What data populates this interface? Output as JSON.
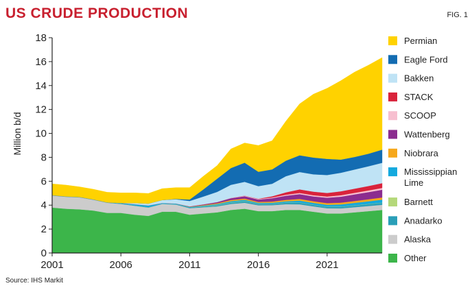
{
  "header": {
    "title": "US CRUDE PRODUCTION",
    "fig_label": "FIG. 1"
  },
  "footer": {
    "source": "Source: IHS Markit"
  },
  "chart_data": {
    "type": "area",
    "stacked": true,
    "title": "US CRUDE PRODUCTION",
    "xlabel": "",
    "ylabel": "Million b/d",
    "xlim": [
      2001,
      2025
    ],
    "ylim": [
      0,
      18
    ],
    "x_ticks": [
      2001,
      2006,
      2011,
      2016,
      2021
    ],
    "y_ticks": [
      0,
      2,
      4,
      6,
      8,
      10,
      12,
      14,
      16,
      18
    ],
    "x_tick_labels": [
      "2001",
      "2006",
      "2011",
      "2016",
      "2021"
    ],
    "y_tick_labels": [
      "0",
      "2",
      "4",
      "6",
      "8",
      "10",
      "12",
      "14",
      "16",
      "18"
    ],
    "legend_position": "right",
    "x": [
      2001,
      2002,
      2003,
      2004,
      2005,
      2006,
      2007,
      2008,
      2009,
      2010,
      2011,
      2012,
      2013,
      2014,
      2015,
      2016,
      2017,
      2018,
      2019,
      2020,
      2021,
      2022,
      2023,
      2024,
      2025
    ],
    "series": [
      {
        "name": "Other",
        "color": "#3cb54a",
        "values": [
          3.8,
          3.7,
          3.65,
          3.55,
          3.35,
          3.35,
          3.2,
          3.1,
          3.45,
          3.45,
          3.2,
          3.3,
          3.4,
          3.6,
          3.7,
          3.5,
          3.5,
          3.6,
          3.6,
          3.45,
          3.3,
          3.3,
          3.4,
          3.5,
          3.6
        ]
      },
      {
        "name": "Alaska",
        "color": "#cccccc",
        "values": [
          1.0,
          1.0,
          1.0,
          0.9,
          0.85,
          0.75,
          0.75,
          0.7,
          0.65,
          0.6,
          0.55,
          0.52,
          0.5,
          0.5,
          0.5,
          0.49,
          0.5,
          0.48,
          0.47,
          0.45,
          0.44,
          0.43,
          0.43,
          0.43,
          0.43
        ]
      },
      {
        "name": "Anadarko",
        "color": "#2a9fb8",
        "values": [
          0.03,
          0.03,
          0.03,
          0.03,
          0.03,
          0.03,
          0.03,
          0.03,
          0.03,
          0.04,
          0.05,
          0.06,
          0.08,
          0.1,
          0.12,
          0.1,
          0.1,
          0.12,
          0.14,
          0.12,
          0.12,
          0.13,
          0.14,
          0.15,
          0.16
        ]
      },
      {
        "name": "Barnett",
        "color": "#b5d87a",
        "values": [
          0,
          0,
          0,
          0,
          0,
          0,
          0,
          0,
          0,
          0,
          0,
          0.02,
          0.03,
          0.03,
          0.03,
          0.02,
          0.02,
          0.02,
          0.02,
          0.02,
          0.02,
          0.02,
          0.02,
          0.02,
          0.02
        ]
      },
      {
        "name": "Mississippian Lime",
        "color": "#14a9de",
        "values": [
          0,
          0,
          0,
          0,
          0,
          0.05,
          0.1,
          0.15,
          0.05,
          0.05,
          0.05,
          0.06,
          0.08,
          0.1,
          0.1,
          0.08,
          0.08,
          0.1,
          0.15,
          0.15,
          0.15,
          0.18,
          0.2,
          0.22,
          0.25
        ]
      },
      {
        "name": "Niobrara",
        "color": "#f6a81c",
        "values": [
          0,
          0,
          0,
          0,
          0,
          0,
          0,
          0,
          0,
          0,
          0.02,
          0.05,
          0.07,
          0.1,
          0.1,
          0.08,
          0.1,
          0.12,
          0.14,
          0.14,
          0.14,
          0.15,
          0.16,
          0.17,
          0.18
        ]
      },
      {
        "name": "Wattenberg",
        "color": "#8b2c8f",
        "values": [
          0,
          0,
          0,
          0,
          0,
          0,
          0,
          0,
          0,
          0,
          0.03,
          0.06,
          0.1,
          0.15,
          0.2,
          0.2,
          0.28,
          0.35,
          0.4,
          0.4,
          0.45,
          0.5,
          0.55,
          0.6,
          0.65
        ]
      },
      {
        "name": "SCOOP",
        "color": "#f7bfcf",
        "values": [
          0,
          0,
          0,
          0,
          0,
          0,
          0,
          0,
          0,
          0,
          0,
          0,
          0,
          0.02,
          0.05,
          0.05,
          0.06,
          0.08,
          0.1,
          0.1,
          0.1,
          0.12,
          0.13,
          0.14,
          0.15
        ]
      },
      {
        "name": "STACK",
        "color": "#d9233b",
        "values": [
          0,
          0,
          0,
          0,
          0,
          0,
          0,
          0,
          0,
          0,
          0,
          0,
          0,
          0,
          0,
          0.02,
          0.1,
          0.2,
          0.3,
          0.3,
          0.3,
          0.33,
          0.35,
          0.37,
          0.4
        ]
      },
      {
        "name": "Bakken",
        "color": "#bfe3f5",
        "values": [
          0,
          0,
          0,
          0,
          0,
          0,
          0.1,
          0.15,
          0.25,
          0.35,
          0.45,
          0.65,
          0.85,
          1.1,
          1.15,
          1.05,
          1.05,
          1.35,
          1.45,
          1.45,
          1.5,
          1.55,
          1.6,
          1.65,
          1.7
        ]
      },
      {
        "name": "Eagle Ford",
        "color": "#136cb2",
        "values": [
          0,
          0,
          0,
          0,
          0,
          0,
          0,
          0,
          0,
          0.03,
          0.12,
          0.6,
          1.1,
          1.4,
          1.6,
          1.2,
          1.2,
          1.3,
          1.4,
          1.4,
          1.35,
          1.1,
          1.05,
          1.05,
          1.1
        ]
      },
      {
        "name": "Permian",
        "color": "#ffd200",
        "values": [
          0.95,
          0.95,
          0.85,
          0.85,
          0.85,
          0.85,
          0.85,
          0.85,
          0.95,
          0.95,
          1.0,
          1.1,
          1.1,
          1.6,
          1.65,
          2.2,
          2.4,
          3.3,
          4.3,
          5.3,
          5.9,
          6.6,
          7.1,
          7.4,
          7.7
        ]
      }
    ]
  }
}
